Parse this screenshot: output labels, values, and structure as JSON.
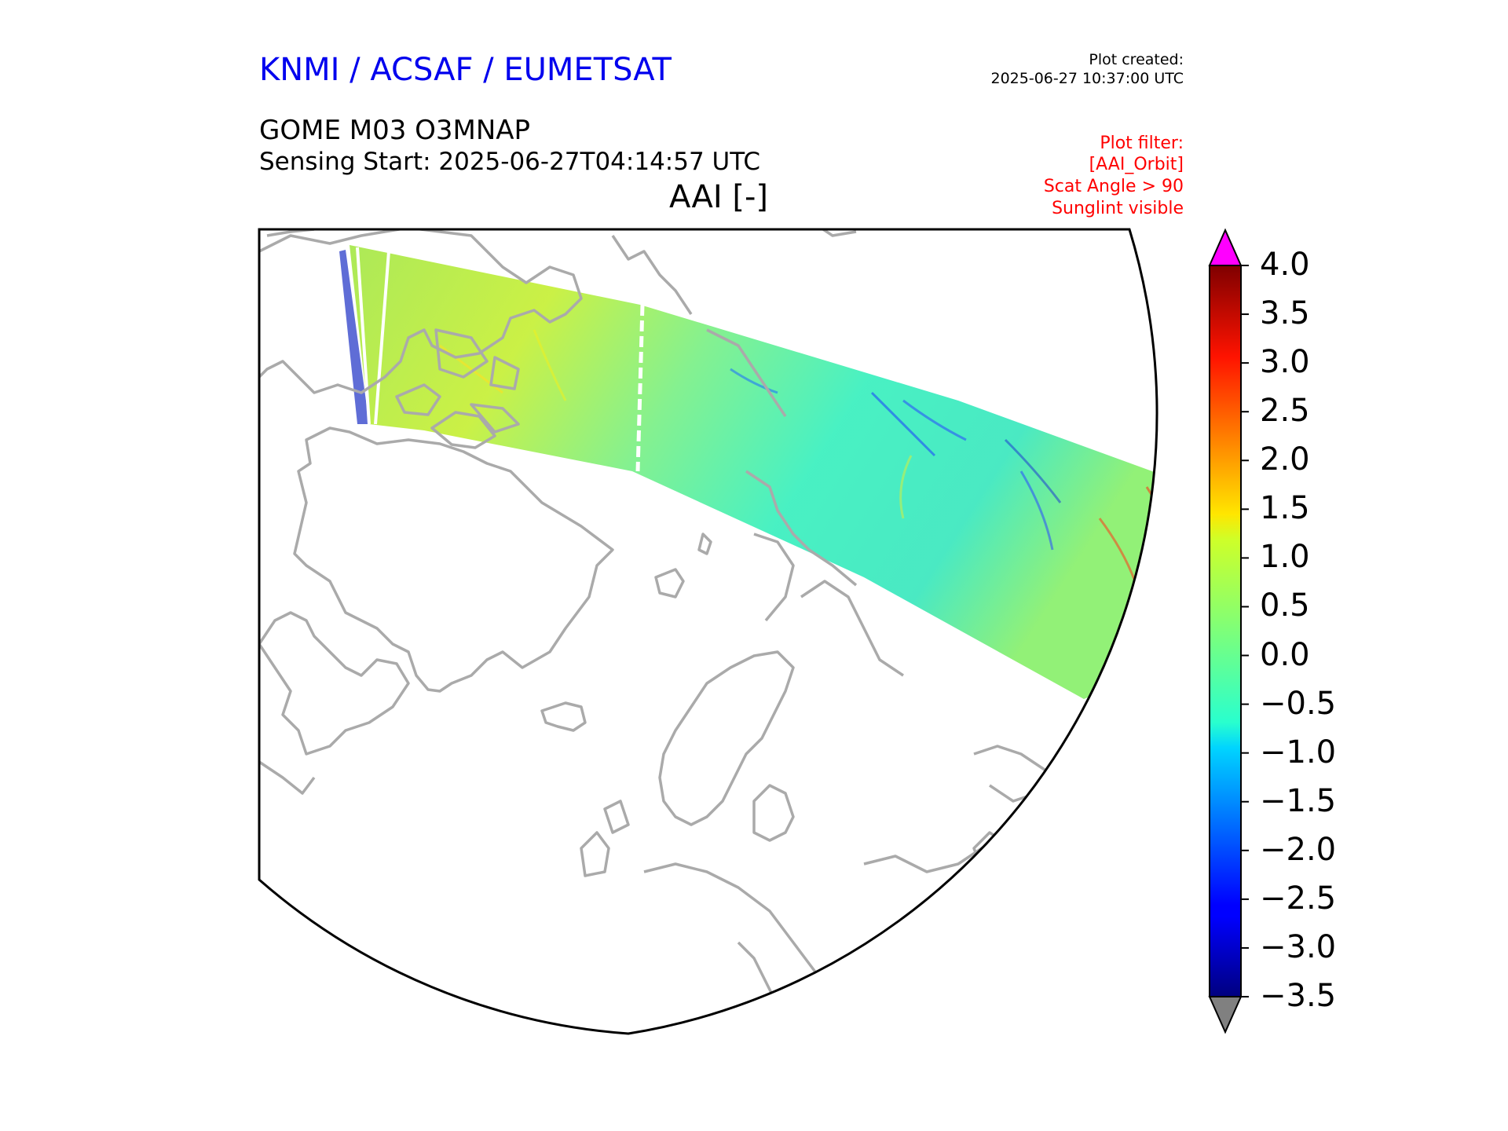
{
  "header": {
    "brand": "KNMI / ACSAF / EUMETSAT",
    "created_label": "Plot created:",
    "created_time": "2025-06-27 10:37:00 UTC",
    "product": "GOME M03 O3MNAP",
    "sensing_start": "Sensing Start: 2025-06-27T04:14:57 UTC",
    "parameter": "AAI [-]"
  },
  "filter": {
    "title": "Plot filter:",
    "items": [
      "[AAI_Orbit]",
      "Scat Angle > 90",
      "Sunglint visible"
    ]
  },
  "map": {
    "projection": "north-polar stereographic",
    "coastline_color": "#aaaaaa",
    "swath": "single orbit swath across the Arctic, Greenland and northern Russia"
  },
  "colorbar": {
    "colormap": "jet",
    "ticks": [
      "4.0",
      "3.5",
      "3.0",
      "2.5",
      "2.0",
      "1.5",
      "1.0",
      "0.5",
      "0.0",
      "−0.5",
      "−1.0",
      "−1.5",
      "−2.0",
      "−2.5",
      "−3.0",
      "−3.5"
    ],
    "range": [
      -3.5,
      4.0
    ],
    "over_color": "#ff00ff",
    "under_color": "#808080"
  }
}
